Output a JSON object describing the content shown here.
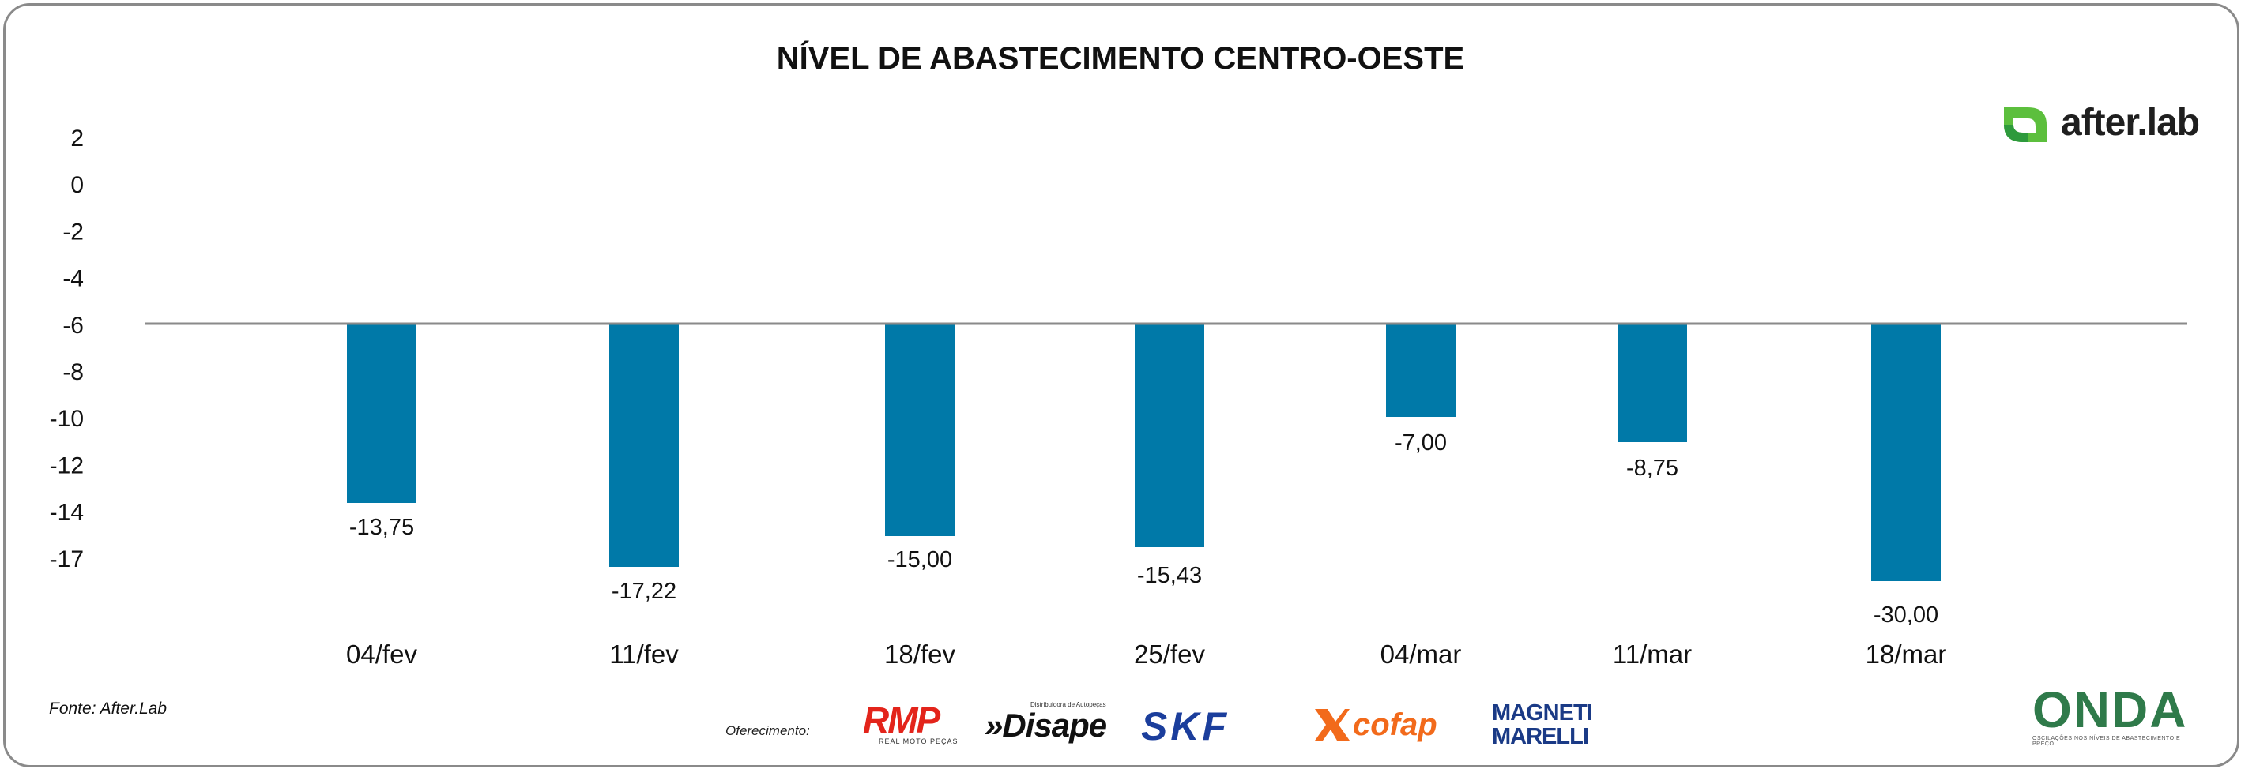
{
  "chart_data": {
    "type": "bar",
    "title": "NÍVEL DE ABASTECIMENTO CENTRO-OESTE",
    "categories": [
      "04/fev",
      "11/fev",
      "18/fev",
      "25/fev",
      "04/mar",
      "11/mar",
      "18/mar"
    ],
    "values": [
      -13.75,
      -17.22,
      -15.0,
      -15.43,
      -7.0,
      -8.75,
      -30.0
    ],
    "value_labels": [
      "-13,75",
      "-17,22",
      "-15,00",
      "-15,43",
      "-7,00",
      "-8,75",
      "-30,00"
    ],
    "y_ticks": [
      "2",
      "0",
      "-2",
      "-4",
      "-6",
      "-8",
      "-10",
      "-12",
      "-14",
      "-17"
    ],
    "baseline_tick_index": 4,
    "bar_color": "#0079a8",
    "baseline_color": "#8a8a8a",
    "xlabel": "",
    "ylabel": "",
    "legend": "none",
    "grid": false
  },
  "source": "Fonte: After.Lab",
  "sponsor_label": "Oferecimento:",
  "brands": {
    "after": "after.lab",
    "after_color": "#5cbf3d",
    "rmp": "RMP",
    "rmp_sub": "REAL MOTO PEÇAS",
    "disape": "Disape",
    "disape_sub": "Distribuidora de Autopeças",
    "skf": "SKF",
    "cofap": "cofap",
    "magneti_line1": "MAGNETI",
    "magneti_line2": "MARELLI",
    "onda": "ONDA",
    "onda_sub": "OSCILAÇÕES NOS NÍVEIS DE ABASTECIMENTO E PREÇO"
  }
}
